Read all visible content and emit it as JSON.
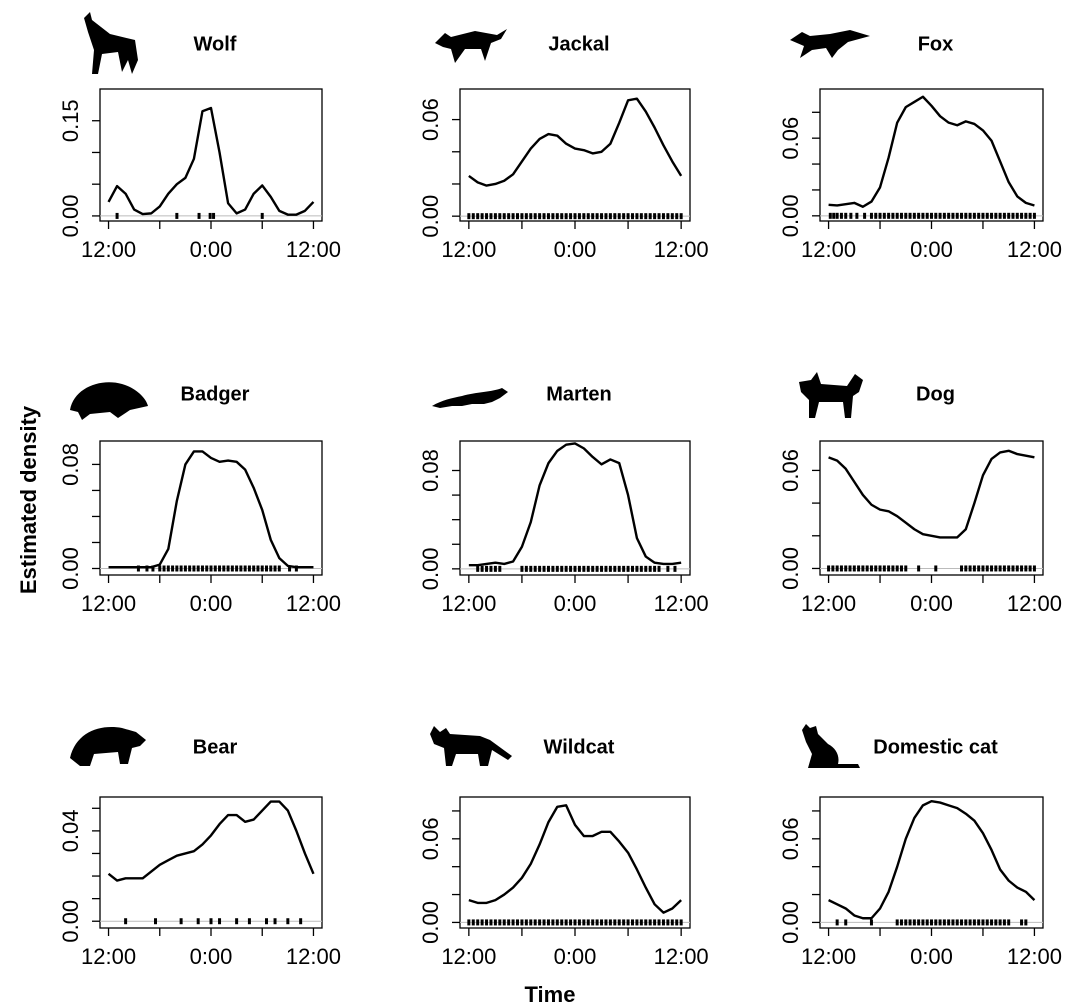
{
  "ylabel": "Estimated density",
  "xlabel": "Time",
  "chart_data": [
    {
      "type": "line",
      "title": "Wolf",
      "color": "#000000",
      "x": [
        12,
        13,
        14,
        15,
        16,
        17,
        18,
        19,
        20,
        21,
        22,
        23,
        24,
        25,
        26,
        27,
        28,
        29,
        30,
        31,
        32,
        33,
        34,
        35,
        36
      ],
      "values": [
        0.022,
        0.047,
        0.035,
        0.01,
        0.003,
        0.004,
        0.015,
        0.035,
        0.05,
        0.06,
        0.09,
        0.165,
        0.17,
        0.1,
        0.02,
        0.004,
        0.01,
        0.035,
        0.048,
        0.03,
        0.008,
        0.002,
        0.002,
        0.008,
        0.022
      ],
      "xlim": [
        11,
        37
      ],
      "xticks": [
        {
          "value": 12,
          "label": "12:00"
        },
        {
          "value": 24,
          "label": "0:00"
        },
        {
          "value": 36,
          "label": "12:00"
        }
      ],
      "minor_xticks": [
        18,
        30
      ],
      "ylim": [
        -0.008,
        0.2
      ],
      "yticks": [
        {
          "value": 0,
          "label": "0.00"
        },
        0.15
      ],
      "minor_yticks": [
        0.05,
        0.1
      ],
      "rug": [
        13,
        20,
        22.6,
        23.9,
        24.3,
        30
      ]
    },
    {
      "type": "line",
      "title": "Jackal",
      "color": "#000000",
      "x": [
        12,
        13,
        14,
        15,
        16,
        17,
        18,
        19,
        20,
        21,
        22,
        23,
        24,
        25,
        26,
        27,
        28,
        29,
        30,
        31,
        32,
        33,
        34,
        35,
        36
      ],
      "values": [
        0.025,
        0.021,
        0.019,
        0.02,
        0.022,
        0.026,
        0.034,
        0.042,
        0.048,
        0.051,
        0.05,
        0.045,
        0.042,
        0.041,
        0.039,
        0.04,
        0.045,
        0.058,
        0.072,
        0.073,
        0.065,
        0.055,
        0.044,
        0.034,
        0.025
      ],
      "xlim": [
        11,
        37
      ],
      "xticks": [
        {
          "value": 12,
          "label": "12:00"
        },
        {
          "value": 24,
          "label": "0:00"
        },
        {
          "value": 36,
          "label": "12:00"
        }
      ],
      "minor_xticks": [
        18,
        30
      ],
      "ylim": [
        -0.003,
        0.079
      ],
      "yticks": [
        {
          "value": 0,
          "label": "0.00"
        },
        0.06
      ],
      "minor_yticks": [
        0.02,
        0.04
      ],
      "rug": [
        12,
        12.5,
        13,
        13.5,
        14,
        14.5,
        15,
        15.5,
        16,
        16.5,
        17,
        17.5,
        18,
        18.5,
        19,
        19.5,
        20,
        20.5,
        21,
        21.5,
        22,
        22.5,
        23,
        23.5,
        24,
        24.5,
        25,
        25.5,
        26,
        26.5,
        27,
        27.5,
        28,
        28.5,
        29,
        29.5,
        30,
        30.5,
        31,
        31.5,
        32,
        32.5,
        33,
        33.5,
        34,
        34.5,
        35,
        35.5,
        36
      ]
    },
    {
      "type": "line",
      "title": "Fox",
      "color": "#000000",
      "x": [
        12,
        13,
        14,
        15,
        16,
        17,
        18,
        19,
        20,
        21,
        22,
        23,
        24,
        25,
        26,
        27,
        28,
        29,
        30,
        31,
        32,
        33,
        34,
        35,
        36
      ],
      "values": [
        0.0085,
        0.008,
        0.009,
        0.01,
        0.007,
        0.011,
        0.022,
        0.045,
        0.072,
        0.084,
        0.088,
        0.092,
        0.085,
        0.077,
        0.072,
        0.07,
        0.073,
        0.071,
        0.066,
        0.058,
        0.042,
        0.026,
        0.015,
        0.01,
        0.008
      ],
      "xlim": [
        11,
        37
      ],
      "xticks": [
        {
          "value": 12,
          "label": "12:00"
        },
        {
          "value": 24,
          "label": "0:00"
        },
        {
          "value": 36,
          "label": "12:00"
        }
      ],
      "minor_xticks": [
        18,
        30
      ],
      "ylim": [
        -0.004,
        0.098
      ],
      "yticks": [
        {
          "value": 0,
          "label": "0.00"
        },
        0.06
      ],
      "minor_yticks": [
        0.02,
        0.04,
        0.08
      ],
      "rug": [
        12.2,
        12.6,
        13,
        13.5,
        14,
        14.6,
        15.3,
        16.2,
        17,
        17.5,
        18,
        18.5,
        19,
        19.5,
        20,
        20.5,
        21,
        21.5,
        22,
        22.5,
        23,
        23.5,
        24,
        24.5,
        25,
        25.5,
        26,
        26.5,
        27,
        27.5,
        28,
        28.5,
        29,
        29.5,
        30,
        30.5,
        31,
        31.5,
        32,
        32.5,
        33,
        33.5,
        34,
        34.5,
        35,
        35.5,
        36
      ]
    },
    {
      "type": "line",
      "title": "Badger",
      "color": "#000000",
      "x": [
        12,
        13,
        14,
        15,
        16,
        17,
        18,
        19,
        20,
        21,
        22,
        23,
        24,
        25,
        26,
        27,
        28,
        29,
        30,
        31,
        32,
        33,
        34,
        35,
        36
      ],
      "values": [
        0.001,
        0.001,
        0.001,
        0.001,
        0.001,
        0.001,
        0.003,
        0.015,
        0.052,
        0.08,
        0.09,
        0.09,
        0.085,
        0.082,
        0.083,
        0.082,
        0.076,
        0.062,
        0.045,
        0.022,
        0.008,
        0.002,
        0.001,
        0.001,
        0.001
      ],
      "xlim": [
        11,
        37
      ],
      "xticks": [
        {
          "value": 12,
          "label": "12:00"
        },
        {
          "value": 24,
          "label": "0:00"
        },
        {
          "value": 36,
          "label": "12:00"
        }
      ],
      "minor_xticks": [
        18,
        30
      ],
      "ylim": [
        -0.005,
        0.098
      ],
      "yticks": [
        {
          "value": 0,
          "label": "0.00"
        },
        0.08
      ],
      "minor_yticks": [
        0.02,
        0.04,
        0.06
      ],
      "rug": [
        15.5,
        16.5,
        17.2,
        18,
        18.5,
        19,
        19.5,
        20,
        20.5,
        21,
        21.5,
        22,
        22.5,
        23,
        23.5,
        24,
        24.5,
        25,
        25.5,
        26,
        26.5,
        27,
        27.5,
        28,
        28.5,
        29,
        29.5,
        30,
        30.5,
        31,
        31.5,
        32,
        33.2,
        34
      ]
    },
    {
      "type": "line",
      "title": "Marten",
      "color": "#000000",
      "x": [
        12,
        13,
        14,
        15,
        16,
        17,
        18,
        19,
        20,
        21,
        22,
        23,
        24,
        25,
        26,
        27,
        28,
        29,
        30,
        31,
        32,
        33,
        34,
        35,
        36
      ],
      "values": [
        0.003,
        0.003,
        0.004,
        0.005,
        0.004,
        0.006,
        0.018,
        0.038,
        0.068,
        0.086,
        0.096,
        0.101,
        0.102,
        0.098,
        0.091,
        0.085,
        0.089,
        0.086,
        0.06,
        0.025,
        0.01,
        0.005,
        0.004,
        0.004,
        0.005
      ],
      "xlim": [
        11,
        37
      ],
      "xticks": [
        {
          "value": 12,
          "label": "12:00"
        },
        {
          "value": 24,
          "label": "0:00"
        },
        {
          "value": 36,
          "label": "12:00"
        }
      ],
      "minor_xticks": [
        18,
        30
      ],
      "ylim": [
        -0.005,
        0.104
      ],
      "yticks": [
        {
          "value": 0,
          "label": "0.00"
        },
        0.08
      ],
      "minor_yticks": [
        0.02,
        0.04,
        0.06
      ],
      "rug": [
        13,
        13.5,
        14,
        14.5,
        15,
        15.5,
        18,
        18.5,
        19,
        19.5,
        20,
        20.5,
        21,
        21.5,
        22,
        22.5,
        23,
        23.5,
        24,
        24.5,
        25,
        25.5,
        26,
        26.5,
        27,
        27.5,
        28,
        28.5,
        29,
        29.5,
        30,
        30.5,
        31,
        31.5,
        32,
        32.5,
        33,
        33.5,
        34.5,
        35.3
      ]
    },
    {
      "type": "line",
      "title": "Dog",
      "color": "#000000",
      "x": [
        12,
        13,
        14,
        15,
        16,
        17,
        18,
        19,
        20,
        21,
        22,
        23,
        24,
        25,
        26,
        27,
        28,
        29,
        30,
        31,
        32,
        33,
        34,
        35,
        36
      ],
      "values": [
        0.068,
        0.066,
        0.061,
        0.053,
        0.045,
        0.039,
        0.036,
        0.035,
        0.032,
        0.028,
        0.024,
        0.021,
        0.02,
        0.019,
        0.019,
        0.019,
        0.024,
        0.04,
        0.057,
        0.067,
        0.071,
        0.072,
        0.07,
        0.069,
        0.068
      ],
      "xlim": [
        11,
        37
      ],
      "xticks": [
        {
          "value": 12,
          "label": "12:00"
        },
        {
          "value": 24,
          "label": "0:00"
        },
        {
          "value": 36,
          "label": "12:00"
        }
      ],
      "minor_xticks": [
        18,
        30
      ],
      "ylim": [
        -0.004,
        0.078
      ],
      "yticks": [
        {
          "value": 0,
          "label": "0.00"
        },
        0.06
      ],
      "minor_yticks": [
        0.02,
        0.04
      ],
      "rug": [
        12,
        12.5,
        13,
        13.5,
        14,
        14.5,
        15,
        15.5,
        16,
        16.5,
        17,
        17.5,
        18,
        18.5,
        19,
        19.5,
        20,
        20.5,
        21,
        22.5,
        24.5,
        27.5,
        28,
        28.5,
        29,
        29.5,
        30,
        30.5,
        31,
        31.5,
        32,
        32.5,
        33,
        33.5,
        34,
        34.5,
        35,
        35.5,
        36
      ]
    },
    {
      "type": "line",
      "title": "Bear",
      "color": "#000000",
      "x": [
        12,
        13,
        14,
        15,
        16,
        17,
        18,
        19,
        20,
        21,
        22,
        23,
        24,
        25,
        26,
        27,
        28,
        29,
        30,
        31,
        32,
        33,
        34,
        35,
        36
      ],
      "values": [
        0.021,
        0.018,
        0.019,
        0.019,
        0.019,
        0.022,
        0.025,
        0.027,
        0.029,
        0.03,
        0.031,
        0.034,
        0.038,
        0.043,
        0.047,
        0.047,
        0.044,
        0.045,
        0.049,
        0.053,
        0.053,
        0.049,
        0.04,
        0.03,
        0.021
      ],
      "xlim": [
        11,
        37
      ],
      "xticks": [
        {
          "value": 12,
          "label": "12:00"
        },
        {
          "value": 24,
          "label": "0:00"
        },
        {
          "value": 36,
          "label": "12:00"
        }
      ],
      "minor_xticks": [
        18,
        30
      ],
      "ylim": [
        -0.003,
        0.055
      ],
      "yticks": [
        {
          "value": 0,
          "label": "0.00"
        },
        0.04
      ],
      "minor_yticks": [
        0.01,
        0.02,
        0.03,
        0.05
      ],
      "rug": [
        14,
        17.5,
        20.5,
        22.5,
        24,
        25,
        27,
        28.5,
        30.5,
        31.5,
        33,
        34.5
      ]
    },
    {
      "type": "line",
      "title": "Wildcat",
      "color": "#000000",
      "x": [
        12,
        13,
        14,
        15,
        16,
        17,
        18,
        19,
        20,
        21,
        22,
        23,
        24,
        25,
        26,
        27,
        28,
        29,
        30,
        31,
        32,
        33,
        34,
        35,
        36
      ],
      "values": [
        0.016,
        0.014,
        0.014,
        0.016,
        0.02,
        0.025,
        0.032,
        0.042,
        0.056,
        0.072,
        0.083,
        0.084,
        0.07,
        0.062,
        0.062,
        0.065,
        0.065,
        0.058,
        0.05,
        0.038,
        0.025,
        0.013,
        0.007,
        0.01,
        0.016
      ],
      "xlim": [
        11,
        37
      ],
      "xticks": [
        {
          "value": 12,
          "label": "12:00"
        },
        {
          "value": 24,
          "label": "0:00"
        },
        {
          "value": 36,
          "label": "12:00"
        }
      ],
      "minor_xticks": [
        18,
        30
      ],
      "ylim": [
        -0.004,
        0.09
      ],
      "yticks": [
        {
          "value": 0,
          "label": "0.00"
        },
        0.06
      ],
      "minor_yticks": [
        0.02,
        0.04,
        0.08
      ],
      "rug": [
        12,
        12.5,
        13,
        13.5,
        14,
        14.5,
        15,
        15.5,
        16,
        16.5,
        17,
        17.5,
        18,
        18.5,
        19,
        19.5,
        20,
        20.5,
        21,
        21.5,
        22,
        22.5,
        23,
        23.5,
        24,
        24.5,
        25,
        25.5,
        26,
        26.5,
        27,
        27.5,
        28,
        28.5,
        29,
        29.5,
        30,
        30.5,
        31,
        31.5,
        32,
        32.5,
        33,
        33.5,
        34,
        34.5,
        35,
        35.5,
        36
      ]
    },
    {
      "type": "line",
      "title": "Domestic cat",
      "color": "#000000",
      "x": [
        12,
        13,
        14,
        15,
        16,
        17,
        18,
        19,
        20,
        21,
        22,
        23,
        24,
        25,
        26,
        27,
        28,
        29,
        30,
        31,
        32,
        33,
        34,
        35,
        36
      ],
      "values": [
        0.016,
        0.013,
        0.01,
        0.005,
        0.003,
        0.003,
        0.01,
        0.022,
        0.04,
        0.06,
        0.075,
        0.084,
        0.087,
        0.086,
        0.084,
        0.082,
        0.078,
        0.073,
        0.064,
        0.052,
        0.038,
        0.03,
        0.025,
        0.022,
        0.016
      ],
      "xlim": [
        11,
        37
      ],
      "xticks": [
        {
          "value": 12,
          "label": "12:00"
        },
        {
          "value": 24,
          "label": "0:00"
        },
        {
          "value": 36,
          "label": "12:00"
        }
      ],
      "minor_xticks": [
        18,
        30
      ],
      "ylim": [
        -0.004,
        0.09
      ],
      "yticks": [
        {
          "value": 0,
          "label": "0.00"
        },
        0.06
      ],
      "minor_yticks": [
        0.02,
        0.04,
        0.08
      ],
      "rug": [
        13,
        14,
        17,
        20,
        20.5,
        21,
        21.5,
        22,
        22.5,
        23,
        23.5,
        24,
        24.5,
        25,
        25.5,
        26,
        26.5,
        27,
        27.5,
        28,
        28.5,
        29,
        29.5,
        30,
        30.5,
        31,
        31.5,
        32,
        32.5,
        33,
        34.5,
        35
      ]
    }
  ]
}
